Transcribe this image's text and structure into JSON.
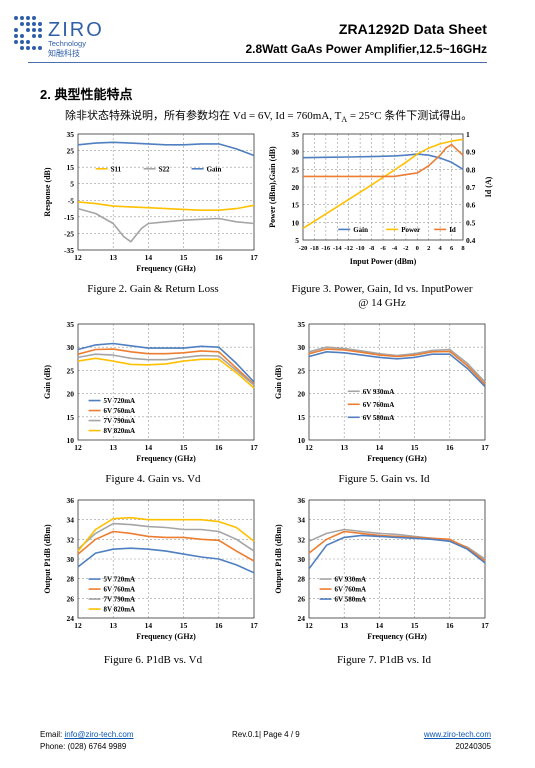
{
  "header": {
    "logo_text": "ZIRO",
    "logo_sub_en": "Technology",
    "logo_sub_cn": "知融科技",
    "title": "ZRA1292D Data Sheet",
    "subtitle": "2.8Watt GaAs Power Amplifier,12.5~16GHz"
  },
  "section": {
    "title": "2.  典型性能特点"
  },
  "intro": "除非状态特殊说明，所有参数均在 Vd = 6V,    Id = 760mA, T",
  "intro_sub": "A",
  "intro_tail": " = 25°C 条件下测试得出。",
  "captions": {
    "fig2": "Figure 2. Gain & Return Loss",
    "fig3_l1": "Figure 3. Power, Gain, Id vs. InputPower",
    "fig3_l2": "@ 14 GHz",
    "fig4": "Figure 4. Gain vs. Vd",
    "fig5": "Figure 5. Gain vs. Id",
    "fig6": "Figure 6. P1dB vs. Vd",
    "fig7": "Figure 7. P1dB vs. Id"
  },
  "footer": {
    "email_label": "Email:",
    "email": "info@ziro-tech.com",
    "phone_label": "Phone:",
    "phone": "(028) 6764 9989",
    "rev": "Rev.0.1| Page 4 / 9",
    "website": "www.ziro-tech.com",
    "date": "20240305"
  },
  "colors": {
    "blue": "#4f7fc0",
    "orange": "#ed7d31",
    "gray": "#a5a5a5",
    "yellow": "#ffc000",
    "brand": "#2f5fa8"
  },
  "chart_data": [
    {
      "id": "fig2",
      "type": "line",
      "xlabel": "Frequency (GHz)",
      "ylabel": "Response (dB)",
      "xlim": [
        12,
        17
      ],
      "ylim": [
        -35,
        35
      ],
      "xticks": [
        12,
        13,
        14,
        15,
        16,
        17
      ],
      "yticks": [
        35,
        25,
        15,
        5,
        -5,
        -15,
        -25,
        -35
      ],
      "legend": "inside-top",
      "series": [
        {
          "name": "S11",
          "color": "#ffc000",
          "x": [
            12,
            12.5,
            13,
            13.5,
            14,
            14.5,
            15,
            15.5,
            16,
            16.5,
            17
          ],
          "y": [
            -6,
            -7,
            -8.5,
            -9,
            -9.5,
            -10,
            -10.5,
            -11,
            -11,
            -10,
            -8
          ]
        },
        {
          "name": "S22",
          "color": "#a5a5a5",
          "x": [
            12,
            12.5,
            13,
            13.3,
            13.5,
            13.8,
            14,
            14.5,
            15,
            15.5,
            16,
            16.5,
            17
          ],
          "y": [
            -10,
            -13,
            -19,
            -27,
            -30,
            -22,
            -19,
            -18,
            -17,
            -16.5,
            -16,
            -18,
            -19
          ]
        },
        {
          "name": "Gain",
          "color": "#4f7fc0",
          "x": [
            12,
            12.5,
            13,
            13.5,
            14,
            14.5,
            15,
            15.5,
            16,
            16.5,
            17
          ],
          "y": [
            28.5,
            29.5,
            30,
            29.5,
            29,
            28.5,
            28.5,
            29,
            29,
            26,
            22
          ]
        }
      ]
    },
    {
      "id": "fig3",
      "type": "line",
      "xlabel": "Input Power (dBm)",
      "ylabel": "Power (dBm),Gain (dB)",
      "y2label": "Id (A)",
      "xlim": [
        -20,
        8
      ],
      "ylim": [
        5,
        35
      ],
      "y2lim": [
        0.4,
        1
      ],
      "xticks": [
        -20,
        -18,
        -16,
        -14,
        -12,
        -10,
        -8,
        -6,
        -4,
        -2,
        0,
        2,
        4,
        6,
        8
      ],
      "yticks": [
        35,
        30,
        25,
        20,
        15,
        10,
        5
      ],
      "y2ticks": [
        1,
        0.9,
        0.8,
        0.7,
        0.6,
        0.5,
        0.4
      ],
      "legend": "bottom-inside",
      "series": [
        {
          "name": "Gain",
          "color": "#4f7fc0",
          "axis": "y",
          "x": [
            -20,
            -16,
            -12,
            -8,
            -4,
            -2,
            0,
            2,
            4,
            6,
            8
          ],
          "y": [
            28.3,
            28.4,
            28.5,
            28.6,
            28.8,
            29,
            29.3,
            29,
            28.2,
            27,
            25
          ]
        },
        {
          "name": "Power",
          "color": "#ffc000",
          "axis": "y",
          "x": [
            -20,
            -16,
            -12,
            -8,
            -4,
            -2,
            0,
            2,
            4,
            6,
            8
          ],
          "y": [
            8.3,
            12.4,
            16.5,
            20.6,
            24.8,
            27,
            29.3,
            31,
            32.2,
            33,
            33.5
          ]
        },
        {
          "name": "Id",
          "color": "#ed7d31",
          "axis": "y2",
          "x": [
            -20,
            -16,
            -12,
            -8,
            -4,
            -2,
            0,
            2,
            4,
            5,
            6,
            7,
            8
          ],
          "y": [
            0.76,
            0.76,
            0.76,
            0.76,
            0.76,
            0.77,
            0.78,
            0.82,
            0.88,
            0.92,
            0.94,
            0.91,
            0.88
          ]
        }
      ]
    },
    {
      "id": "fig4",
      "type": "line",
      "xlabel": "Frequency (GHz)",
      "ylabel": "Gain (dB)",
      "xlim": [
        12,
        17
      ],
      "ylim": [
        10,
        35
      ],
      "xticks": [
        12,
        13,
        14,
        15,
        16,
        17
      ],
      "yticks": [
        35,
        30,
        25,
        20,
        15,
        10
      ],
      "legend": "inside-bottom-left",
      "series": [
        {
          "name": "5V 720mA",
          "color": "#4f7fc0",
          "x": [
            12,
            12.5,
            13,
            13.5,
            14,
            14.5,
            15,
            15.5,
            16,
            16.5,
            17
          ],
          "y": [
            29.5,
            30.5,
            30.8,
            30.3,
            29.8,
            29.8,
            29.8,
            30.2,
            30,
            26.5,
            22.5
          ]
        },
        {
          "name": "6V 760mA",
          "color": "#ed7d31",
          "x": [
            12,
            12.5,
            13,
            13.5,
            14,
            14.5,
            15,
            15.5,
            16,
            16.5,
            17
          ],
          "y": [
            28.5,
            29.5,
            29.6,
            29,
            28.6,
            28.6,
            28.8,
            29.2,
            29,
            25.5,
            22
          ]
        },
        {
          "name": "7V 790mA",
          "color": "#a5a5a5",
          "x": [
            12,
            12.5,
            13,
            13.5,
            14,
            14.5,
            15,
            15.5,
            16,
            16.5,
            17
          ],
          "y": [
            27.8,
            28.5,
            28.3,
            27.6,
            27.3,
            27.3,
            27.8,
            28.2,
            28.1,
            25,
            21.8
          ]
        },
        {
          "name": "8V 820mA",
          "color": "#ffc000",
          "x": [
            12,
            12.5,
            13,
            13.5,
            14,
            14.5,
            15,
            15.5,
            16,
            16.5,
            17
          ],
          "y": [
            27,
            27.6,
            27,
            26.3,
            26.2,
            26.4,
            27,
            27.4,
            27.4,
            24.5,
            21.2
          ]
        }
      ]
    },
    {
      "id": "fig5",
      "type": "line",
      "xlabel": "Frequency (GHz)",
      "ylabel": "Gain (dB)",
      "xlim": [
        12,
        17
      ],
      "ylim": [
        10,
        35
      ],
      "xticks": [
        12,
        13,
        14,
        15,
        16,
        17
      ],
      "yticks": [
        35,
        30,
        25,
        20,
        15,
        10
      ],
      "legend": "inside-bottom-left",
      "series": [
        {
          "name": "6V 930mA",
          "color": "#a5a5a5",
          "x": [
            12,
            12.5,
            13,
            13.5,
            14,
            14.5,
            15,
            15.5,
            16,
            16.5,
            17
          ],
          "y": [
            29,
            30,
            29.7,
            29.2,
            28.6,
            28.2,
            28.6,
            29.3,
            29.5,
            26.5,
            22.5
          ]
        },
        {
          "name": "6V 760mA",
          "color": "#ed7d31",
          "x": [
            12,
            12.5,
            13,
            13.5,
            14,
            14.5,
            15,
            15.5,
            16,
            16.5,
            17
          ],
          "y": [
            28.6,
            29.6,
            29.4,
            28.9,
            28.3,
            28,
            28.3,
            29,
            29.1,
            26,
            22
          ]
        },
        {
          "name": "6V 580mA",
          "color": "#4f7fc0",
          "x": [
            12,
            12.5,
            13,
            13.5,
            14,
            14.5,
            15,
            15.5,
            16,
            16.5,
            17
          ],
          "y": [
            28,
            29,
            28.8,
            28.3,
            27.8,
            27.5,
            27.8,
            28.5,
            28.5,
            25.4,
            21.5
          ]
        }
      ]
    },
    {
      "id": "fig6",
      "type": "line",
      "xlabel": "Frequency (GHz)",
      "ylabel": "Output P1dB (dBm)",
      "xlim": [
        12,
        17
      ],
      "ylim": [
        24,
        36
      ],
      "xticks": [
        12,
        13,
        14,
        15,
        16,
        17
      ],
      "yticks": [
        36,
        34,
        32,
        30,
        28,
        26,
        24
      ],
      "legend": "inside-bottom-left",
      "series": [
        {
          "name": "5V 720mA",
          "color": "#4f7fc0",
          "x": [
            12,
            12.5,
            13,
            13.5,
            14,
            14.5,
            15,
            15.5,
            16,
            16.5,
            17
          ],
          "y": [
            29.2,
            30.6,
            31,
            31.1,
            31,
            30.8,
            30.5,
            30.2,
            30,
            29.4,
            28.6
          ]
        },
        {
          "name": "6V 760mA",
          "color": "#ed7d31",
          "x": [
            12,
            12.5,
            13,
            13.5,
            14,
            14.5,
            15,
            15.5,
            16,
            16.5,
            17
          ],
          "y": [
            30.5,
            32,
            32.8,
            32.6,
            32.3,
            32.2,
            32.2,
            32,
            31.9,
            30.8,
            29.8
          ]
        },
        {
          "name": "7V 790mA",
          "color": "#a5a5a5",
          "x": [
            12,
            12.5,
            13,
            13.5,
            14,
            14.5,
            15,
            15.5,
            16,
            16.5,
            17
          ],
          "y": [
            31,
            32.6,
            33.6,
            33.5,
            33.3,
            33.2,
            33,
            33,
            32.8,
            32,
            30.8
          ]
        },
        {
          "name": "8V 820mA",
          "color": "#ffc000",
          "x": [
            12,
            12.5,
            13,
            13.5,
            14,
            14.5,
            15,
            15.5,
            16,
            16.5,
            17
          ],
          "y": [
            30.8,
            33,
            34.1,
            34.2,
            34,
            34,
            34,
            34,
            33.8,
            33.2,
            31.8
          ]
        }
      ]
    },
    {
      "id": "fig7",
      "type": "line",
      "xlabel": "Frequency (GHz)",
      "ylabel": "Output P1dB (dBm)",
      "xlim": [
        12,
        17
      ],
      "ylim": [
        24,
        36
      ],
      "xticks": [
        12,
        13,
        14,
        15,
        16,
        17
      ],
      "yticks": [
        36,
        34,
        32,
        30,
        28,
        26,
        24
      ],
      "legend": "inside-bottom-left",
      "series": [
        {
          "name": "6V 930mA",
          "color": "#a5a5a5",
          "x": [
            12,
            12.5,
            13,
            13.5,
            14,
            14.5,
            15,
            15.5,
            16,
            16.5,
            17
          ],
          "y": [
            31.8,
            32.6,
            33,
            32.8,
            32.6,
            32.5,
            32.3,
            32.1,
            31.9,
            31.2,
            30
          ]
        },
        {
          "name": "6V 760mA",
          "color": "#ed7d31",
          "x": [
            12,
            12.5,
            13,
            13.5,
            14,
            14.5,
            15,
            15.5,
            16,
            16.5,
            17
          ],
          "y": [
            30.6,
            32,
            32.8,
            32.6,
            32.4,
            32.3,
            32.2,
            32.1,
            32,
            31.1,
            29.8
          ]
        },
        {
          "name": "6V 580mA",
          "color": "#4f7fc0",
          "x": [
            12,
            12.5,
            13,
            13.5,
            14,
            14.5,
            15,
            15.5,
            16,
            16.5,
            17
          ],
          "y": [
            29,
            31.4,
            32.2,
            32.4,
            32.3,
            32.2,
            32.1,
            32,
            31.8,
            31,
            29.6
          ]
        }
      ]
    }
  ]
}
